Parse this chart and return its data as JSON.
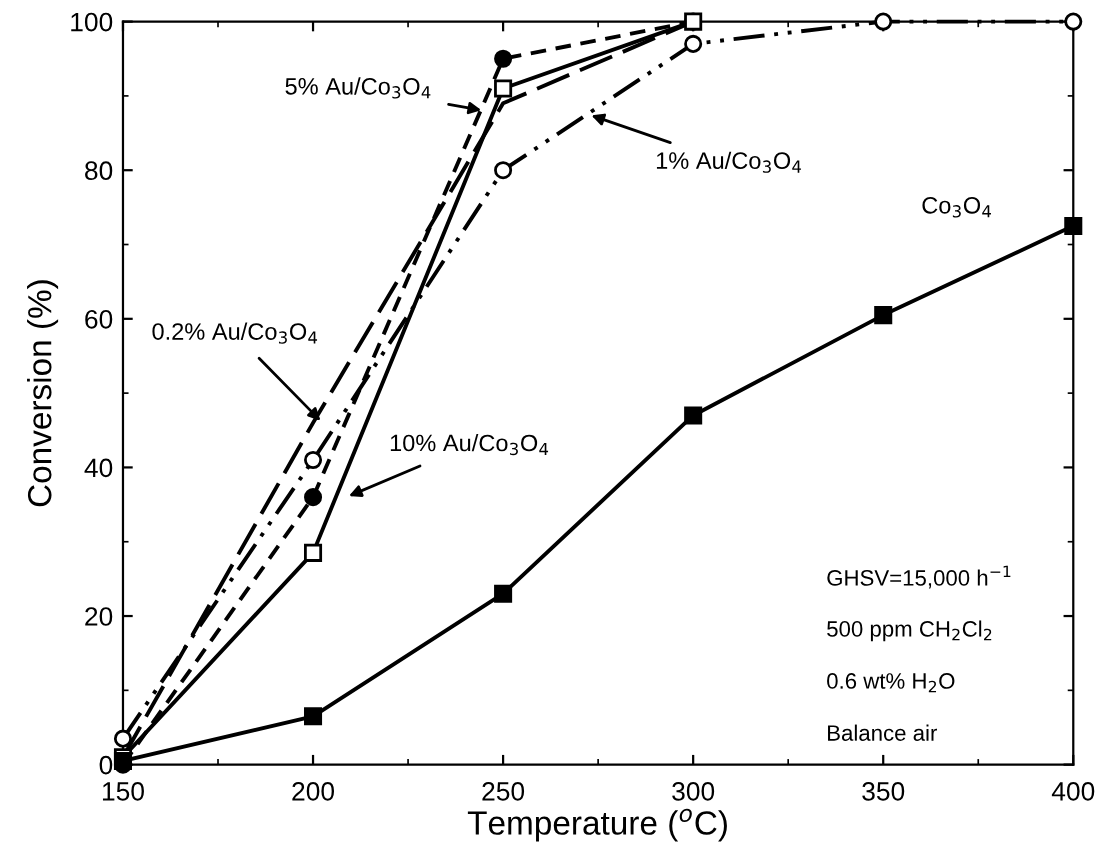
{
  "chart_data": {
    "type": "line",
    "xlabel": "Temperature ($^{o}$C)",
    "ylabel": "Conversion (%)",
    "x": [
      150,
      200,
      250,
      300,
      350,
      400
    ],
    "xlim": [
      150,
      400
    ],
    "xticks": [
      150,
      200,
      250,
      300,
      350,
      400
    ],
    "ylim": [
      0,
      100
    ],
    "yticks": [
      0,
      20,
      40,
      60,
      80,
      100
    ],
    "grid": false,
    "legend": false,
    "series": [
      {
        "name": "5% Au/Co$_{3}$O$_{4}$",
        "color": "#000000",
        "values": [
          0,
          36,
          95,
          100,
          null,
          null
        ],
        "marker": "circle",
        "line_style": "dashed"
      },
      {
        "name": "1% Au/Co$_{3}$O$_{4}$",
        "color": "#000000",
        "values": [
          3.5,
          41,
          80,
          97,
          100,
          100
        ],
        "marker": "circle",
        "line_style": "dashdotdot"
      },
      {
        "name": "0.2% Au/Co$_{3}$O$_{4}$",
        "color": "#000000",
        "values": [
          1,
          46,
          89,
          100,
          null,
          null
        ],
        "line_style": "longdash"
      },
      {
        "name": "10% Au/Co$_{3}$O$_{4}$",
        "color": "#000000",
        "values": [
          1,
          28.5,
          91,
          100,
          null,
          null
        ],
        "marker": "square",
        "line_style": "solid"
      },
      {
        "name": "Co$_{3}$O$_{4}$",
        "color": "#000000",
        "values": [
          0.5,
          6.5,
          23,
          47,
          60.5,
          72.5
        ],
        "marker": "square",
        "line_style": "solid"
      }
    ],
    "annotations": [
      "GHSV=15,000 h$^{−1}$",
      "500 ppm CH$_{2}$Cl$_{2}$",
      "0.6 wt% H$_{2}$O",
      "Balance air"
    ]
  }
}
